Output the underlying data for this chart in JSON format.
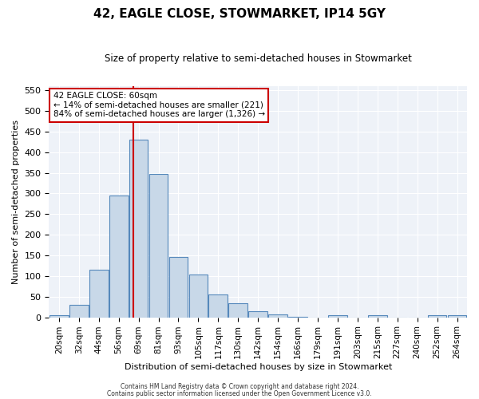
{
  "title": "42, EAGLE CLOSE, STOWMARKET, IP14 5GY",
  "subtitle": "Size of property relative to semi-detached houses in Stowmarket",
  "xlabel": "Distribution of semi-detached houses by size in Stowmarket",
  "ylabel": "Number of semi-detached properties",
  "bin_labels": [
    "20sqm",
    "32sqm",
    "44sqm",
    "56sqm",
    "69sqm",
    "81sqm",
    "93sqm",
    "105sqm",
    "117sqm",
    "130sqm",
    "142sqm",
    "154sqm",
    "166sqm",
    "179sqm",
    "191sqm",
    "203sqm",
    "215sqm",
    "227sqm",
    "240sqm",
    "252sqm",
    "264sqm"
  ],
  "bar_heights": [
    5,
    30,
    115,
    295,
    430,
    348,
    147,
    104,
    55,
    35,
    15,
    7,
    2,
    0,
    5,
    0,
    5,
    0,
    0,
    5,
    5
  ],
  "bar_color": "#c8d8e8",
  "bar_edge_color": "#5588bb",
  "red_line_x": 3.75,
  "ylim": [
    0,
    560
  ],
  "yticks": [
    0,
    50,
    100,
    150,
    200,
    250,
    300,
    350,
    400,
    450,
    500,
    550
  ],
  "annotation_title": "42 EAGLE CLOSE: 60sqm",
  "annotation_line1": "← 14% of semi-detached houses are smaller (221)",
  "annotation_line2": "84% of semi-detached houses are larger (1,326) →",
  "annotation_box_color": "#ffffff",
  "annotation_box_edge": "#cc0000",
  "red_line_color": "#cc0000",
  "background_color": "#eef2f8",
  "footer1": "Contains HM Land Registry data © Crown copyright and database right 2024.",
  "footer2": "Contains public sector information licensed under the Open Government Licence v3.0."
}
